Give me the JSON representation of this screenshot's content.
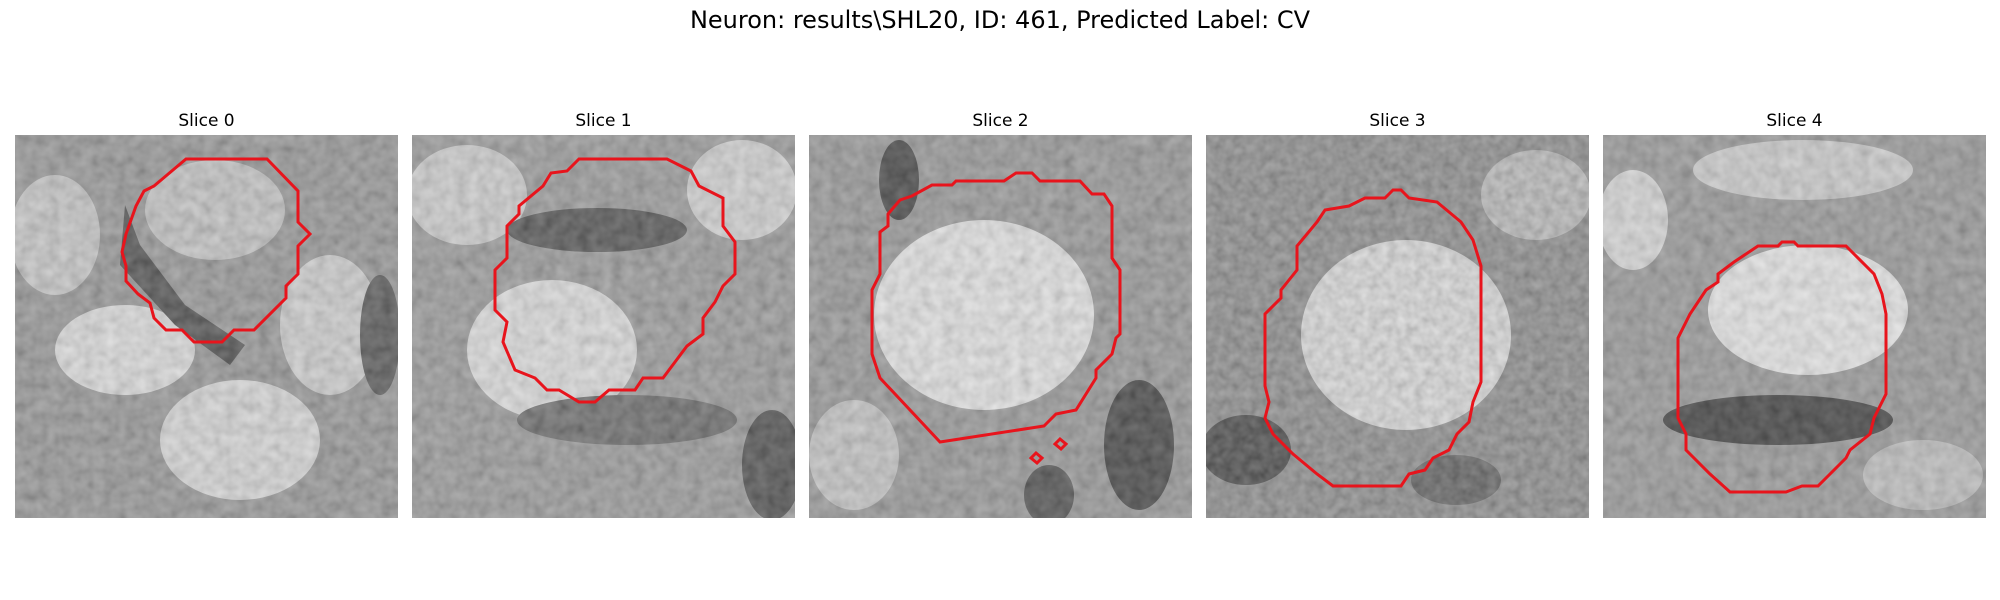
{
  "figure": {
    "title": "Neuron: results\\SHL20, ID: 461, Predicted Label: CV"
  },
  "contour_color": "#e8141c",
  "panels": [
    {
      "title": "Slice 0"
    },
    {
      "title": "Slice 1"
    },
    {
      "title": "Slice 2"
    },
    {
      "title": "Slice 3"
    },
    {
      "title": "Slice 4"
    }
  ]
}
